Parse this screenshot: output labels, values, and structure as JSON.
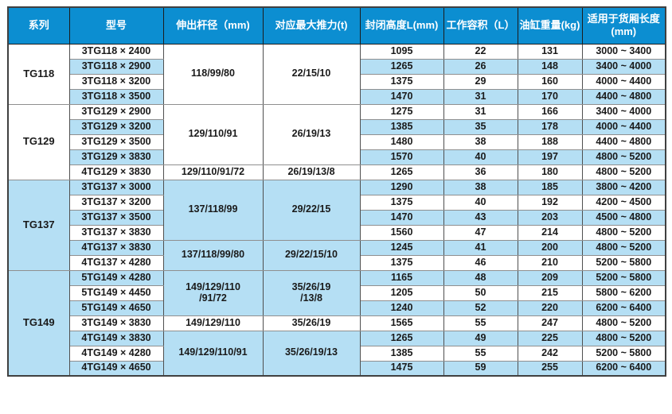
{
  "colors": {
    "header_bg": "#0c8ed1",
    "header_text": "#ffffff",
    "row_bg": "#ffffff",
    "row_alt_bg": "#b5dff4",
    "body_text": "#1a1a1a",
    "border_dark": "#404040",
    "border_gray": "#8f8f8f"
  },
  "table": {
    "columns": [
      {
        "key": "series",
        "label": "系列"
      },
      {
        "key": "model",
        "label": "型号"
      },
      {
        "key": "rod",
        "label": "伸出杆径（mm)"
      },
      {
        "key": "thrust",
        "label": "对应最大推力(t)"
      },
      {
        "key": "closed_height",
        "label": "封闭高度L(mm)"
      },
      {
        "key": "volume",
        "label": "工作容积（L）"
      },
      {
        "key": "weight",
        "label": "油缸重量(kg)"
      },
      {
        "key": "box_length",
        "label": "适用于货厢长度\n(mm)"
      }
    ],
    "groups": [
      {
        "series": "TG118",
        "blocks": [
          {
            "rod": "118/99/80",
            "thrust": "22/15/10",
            "rows": [
              {
                "model": "3TG118 × 2400",
                "closed_height": "1095",
                "volume": "22",
                "weight": "131",
                "box_length": "3000 ~ 3400"
              },
              {
                "model": "3TG118 × 2900",
                "closed_height": "1265",
                "volume": "26",
                "weight": "148",
                "box_length": "3400 ~ 4000"
              },
              {
                "model": "3TG118 × 3200",
                "closed_height": "1375",
                "volume": "29",
                "weight": "160",
                "box_length": "4000 ~ 4400"
              },
              {
                "model": "3TG118 × 3500",
                "closed_height": "1470",
                "volume": "31",
                "weight": "170",
                "box_length": "4400 ~ 4800"
              }
            ]
          }
        ]
      },
      {
        "series": "TG129",
        "blocks": [
          {
            "rod": "129/110/91",
            "thrust": "26/19/13",
            "rows": [
              {
                "model": "3TG129 × 2900",
                "closed_height": "1275",
                "volume": "31",
                "weight": "166",
                "box_length": "3400 ~ 4000"
              },
              {
                "model": "3TG129 × 3200",
                "closed_height": "1385",
                "volume": "35",
                "weight": "178",
                "box_length": "4000 ~ 4400"
              },
              {
                "model": "3TG129 × 3500",
                "closed_height": "1480",
                "volume": "38",
                "weight": "188",
                "box_length": "4400 ~ 4800"
              },
              {
                "model": "3TG129 × 3830",
                "closed_height": "1570",
                "volume": "40",
                "weight": "197",
                "box_length": "4800 ~ 5200"
              }
            ]
          },
          {
            "rod": "129/110/91/72",
            "thrust": "26/19/13/8",
            "rows": [
              {
                "model": "4TG129 × 3830",
                "closed_height": "1265",
                "volume": "36",
                "weight": "180",
                "box_length": "4800 ~ 5200"
              }
            ]
          }
        ]
      },
      {
        "series": "TG137",
        "blocks": [
          {
            "rod": "137/118/99",
            "thrust": "29/22/15",
            "rows": [
              {
                "model": "3TG137 × 3000",
                "closed_height": "1290",
                "volume": "38",
                "weight": "185",
                "box_length": "3800 ~ 4200"
              },
              {
                "model": "3TG137 × 3200",
                "closed_height": "1375",
                "volume": "40",
                "weight": "192",
                "box_length": "4200 ~ 4500"
              },
              {
                "model": "3TG137 × 3500",
                "closed_height": "1470",
                "volume": "43",
                "weight": "203",
                "box_length": "4500 ~ 4800"
              },
              {
                "model": "3TG137 × 3830",
                "closed_height": "1560",
                "volume": "47",
                "weight": "214",
                "box_length": "4800 ~ 5200"
              }
            ]
          },
          {
            "rod": "137/118/99/80",
            "thrust": "29/22/15/10",
            "rows": [
              {
                "model": "4TG137 × 3830",
                "closed_height": "1245",
                "volume": "41",
                "weight": "200",
                "box_length": "4800 ~ 5200"
              },
              {
                "model": "4TG137 × 4280",
                "closed_height": "1375",
                "volume": "46",
                "weight": "210",
                "box_length": "5200 ~ 5800"
              }
            ]
          }
        ]
      },
      {
        "series": "TG149",
        "blocks": [
          {
            "rod": "149/129/110\n/91/72",
            "thrust": "35/26/19\n/13/8",
            "rows": [
              {
                "model": "5TG149 × 4280",
                "closed_height": "1165",
                "volume": "48",
                "weight": "209",
                "box_length": "5200 ~ 5800"
              },
              {
                "model": "5TG149 × 4450",
                "closed_height": "1205",
                "volume": "50",
                "weight": "215",
                "box_length": "5800 ~ 6200"
              },
              {
                "model": "5TG149 × 4650",
                "closed_height": "1240",
                "volume": "52",
                "weight": "220",
                "box_length": "6200 ~ 6400"
              }
            ]
          },
          {
            "rod": "149/129/110",
            "thrust": "35/26/19",
            "rows": [
              {
                "model": "3TG149 × 3830",
                "closed_height": "1565",
                "volume": "55",
                "weight": "247",
                "box_length": "4800 ~ 5200"
              }
            ]
          },
          {
            "rod": "149/129/110/91",
            "thrust": "35/26/19/13",
            "rows": [
              {
                "model": "4TG149 × 3830",
                "closed_height": "1265",
                "volume": "49",
                "weight": "225",
                "box_length": "4800 ~ 5200"
              },
              {
                "model": "4TG149 × 4280",
                "closed_height": "1385",
                "volume": "55",
                "weight": "242",
                "box_length": "5200 ~ 5800"
              },
              {
                "model": "4TG149 × 4650",
                "closed_height": "1475",
                "volume": "59",
                "weight": "255",
                "box_length": "6200 ~ 6400"
              }
            ]
          }
        ]
      }
    ]
  }
}
